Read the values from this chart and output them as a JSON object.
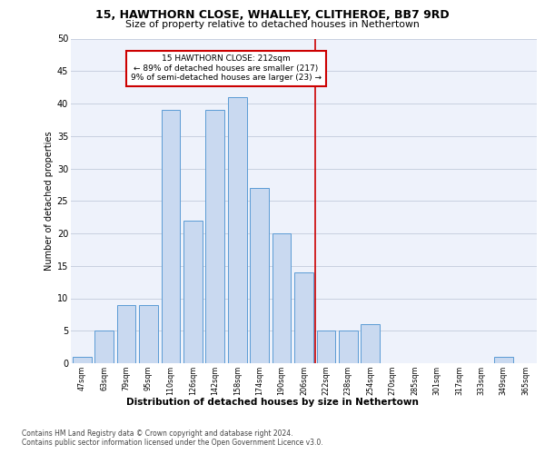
{
  "title1": "15, HAWTHORN CLOSE, WHALLEY, CLITHEROE, BB7 9RD",
  "title2": "Size of property relative to detached houses in Nethertown",
  "xlabel": "Distribution of detached houses by size in Nethertown",
  "ylabel": "Number of detached properties",
  "categories": [
    "47sqm",
    "63sqm",
    "79sqm",
    "95sqm",
    "110sqm",
    "126sqm",
    "142sqm",
    "158sqm",
    "174sqm",
    "190sqm",
    "206sqm",
    "222sqm",
    "238sqm",
    "254sqm",
    "270sqm",
    "285sqm",
    "301sqm",
    "317sqm",
    "333sqm",
    "349sqm",
    "365sqm"
  ],
  "values": [
    1,
    5,
    9,
    9,
    39,
    22,
    39,
    41,
    27,
    20,
    14,
    5,
    5,
    6,
    0,
    0,
    0,
    0,
    0,
    1,
    0
  ],
  "bar_color": "#c9d9f0",
  "bar_edge_color": "#5b9bd5",
  "grid_color": "#c8d0e0",
  "background_color": "#eef2fb",
  "red_line_x": 10.5,
  "red_line_color": "#cc0000",
  "annotation_text": "15 HAWTHORN CLOSE: 212sqm\n← 89% of detached houses are smaller (217)\n9% of semi-detached houses are larger (23) →",
  "annotation_box_color": "#ffffff",
  "annotation_box_edge": "#cc0000",
  "footer1": "Contains HM Land Registry data © Crown copyright and database right 2024.",
  "footer2": "Contains public sector information licensed under the Open Government Licence v3.0.",
  "ylim": [
    0,
    50
  ],
  "yticks": [
    0,
    5,
    10,
    15,
    20,
    25,
    30,
    35,
    40,
    45,
    50
  ]
}
